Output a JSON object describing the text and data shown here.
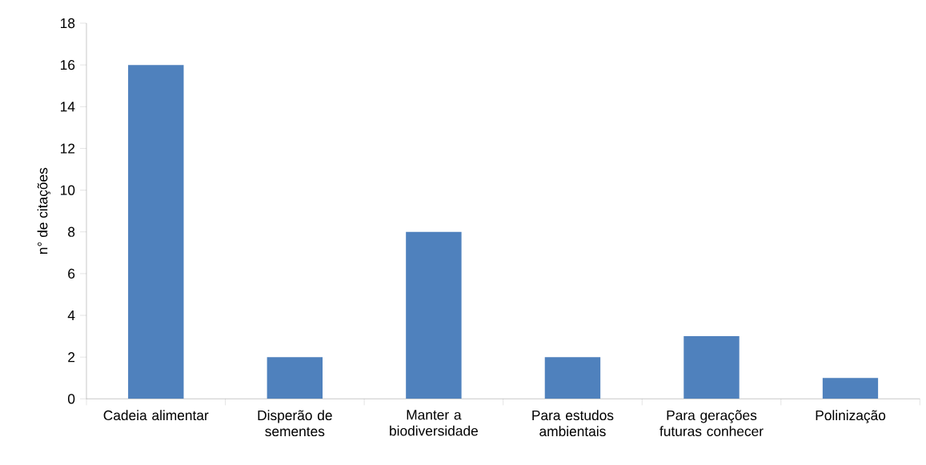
{
  "chart_data": {
    "type": "bar",
    "ylabel": "n° de citações",
    "categories": [
      "Cadeia alimentar",
      "Disperão de sementes",
      "Manter a biodiversidade",
      "Para estudos ambientais",
      "Para gerações futuras conhecer",
      "Polinização"
    ],
    "values": [
      16,
      2,
      8,
      2,
      3,
      1
    ],
    "color": "#4f81bd",
    "ylim": [
      0,
      18
    ],
    "yticks": [
      0,
      2,
      4,
      6,
      8,
      10,
      12,
      14,
      16,
      18
    ]
  }
}
